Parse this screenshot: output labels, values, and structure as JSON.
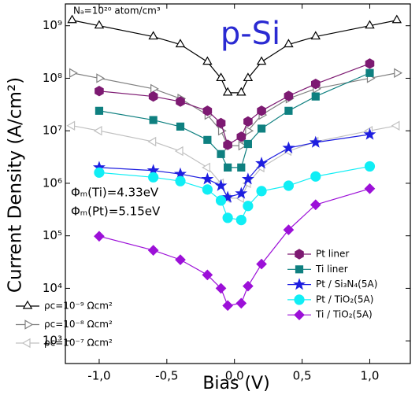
{
  "chart_data": {
    "type": "line",
    "y_scale": "log",
    "ylabel": "Current Density (A/cm²)",
    "xlabel": "Bias (V)",
    "annotations": [
      "Nₐ=10²⁰ atom/cm³",
      "p-Si",
      "Φₘ(Ti)=4.33eV",
      "Φₘ(Pt)=5.15eV"
    ],
    "xlim": [
      -1.25,
      1.3
    ],
    "ylim": [
      370,
      2600000000
    ],
    "xticks": [
      {
        "value": -1,
        "label": "-1,0"
      },
      {
        "value": -0.5,
        "label": "-0,5"
      },
      {
        "value": 0,
        "label": "0,0"
      },
      {
        "value": 0.5,
        "label": "0,5"
      },
      {
        "value": 1,
        "label": "1,0"
      }
    ],
    "yticks": [
      {
        "value": 1000,
        "label": "10³"
      },
      {
        "value": 10000,
        "label": "10⁴"
      },
      {
        "value": 100000,
        "label": "10⁵"
      },
      {
        "value": 1000000,
        "label": "10⁶"
      },
      {
        "value": 10000000,
        "label": "10⁷"
      },
      {
        "value": 100000000,
        "label": "10⁸"
      },
      {
        "value": 1000000000,
        "label": "10⁹"
      }
    ],
    "series": [
      {
        "name": "ρc=10⁻⁹ Ωcm²",
        "color": "#000000",
        "marker": "triangle-up",
        "filled": false,
        "legend": "lower left",
        "x": [
          -1.2,
          -1.0,
          -0.6,
          -0.4,
          -0.2,
          -0.1,
          -0.05,
          0.05,
          0.1,
          0.2,
          0.4,
          0.6,
          1.0,
          1.2
        ],
        "values": [
          1270000000,
          1000000000,
          620000000,
          440000000,
          205000000,
          100000000,
          53000000,
          53000000,
          100000000,
          205000000,
          440000000,
          620000000,
          1000000000,
          1270000000
        ]
      },
      {
        "name": "ρc=10⁻⁸ Ωcm²",
        "color": "#808080",
        "marker": "triangle-right",
        "filled": false,
        "legend": "lower left",
        "x": [
          -1.2,
          -1.0,
          -0.6,
          -0.4,
          -0.2,
          -0.1,
          -0.05,
          0.05,
          0.1,
          0.2,
          0.4,
          0.6,
          1.0,
          1.2
        ],
        "values": [
          126000000,
          100000000,
          63000000,
          41000000,
          20000000,
          10000000,
          5200000,
          5200000,
          10000000,
          20000000,
          41000000,
          63000000,
          100000000,
          126000000
        ]
      },
      {
        "name": "ρc=10⁻⁷ Ωcm²",
        "color": "#c0c0c0",
        "marker": "triangle-left",
        "filled": false,
        "legend": "lower left",
        "x": [
          -1.2,
          -1.0,
          -0.6,
          -0.4,
          -0.2,
          -0.1,
          -0.05,
          0.05,
          0.1,
          0.2,
          0.4,
          0.6,
          1.0,
          1.2
        ],
        "values": [
          12500000,
          10000000,
          6200000,
          4100000,
          2000000,
          1000000,
          520000,
          520000,
          1000000,
          2000000,
          4100000,
          6200000,
          10000000,
          12500000
        ]
      },
      {
        "name": "Pt liner",
        "color": "#7d1a72",
        "marker": "hexagon",
        "filled": true,
        "legend": "lower right",
        "x": [
          -1.0,
          -0.6,
          -0.4,
          -0.2,
          -0.1,
          -0.05,
          0.05,
          0.1,
          0.2,
          0.4,
          0.6,
          1.0
        ],
        "values": [
          57000000,
          45000000,
          36000000,
          24000000,
          14000000,
          5400000,
          7700000,
          15000000,
          24000000,
          46000000,
          78000000,
          190000000
        ]
      },
      {
        "name": "Ti liner",
        "color": "#0f8080",
        "marker": "square",
        "filled": true,
        "legend": "lower right",
        "x": [
          -1.0,
          -0.6,
          -0.4,
          -0.2,
          -0.1,
          -0.05,
          0.05,
          0.1,
          0.2,
          0.4,
          0.6,
          1.0
        ],
        "values": [
          24000000,
          16000000,
          12000000,
          6700000,
          3600000,
          2000000,
          2000000,
          5600000,
          11000000,
          24000000,
          45000000,
          126000000
        ]
      },
      {
        "name": "Pt / Si₃N₄(5A)",
        "color": "#1e1ee0",
        "marker": "star",
        "filled": true,
        "legend": "lower right",
        "x": [
          -1.0,
          -0.6,
          -0.4,
          -0.2,
          -0.1,
          -0.05,
          0.05,
          0.1,
          0.2,
          0.4,
          0.6,
          1.0
        ],
        "values": [
          2000000,
          1750000,
          1500000,
          1200000,
          900000,
          540000,
          640000,
          1200000,
          2400000,
          4700000,
          6000000,
          8500000
        ]
      },
      {
        "name": "Pt / TiO₂(5A)",
        "color": "#10eef5",
        "marker": "circle",
        "filled": true,
        "legend": "lower right",
        "x": [
          -1.0,
          -0.6,
          -0.4,
          -0.2,
          -0.1,
          -0.05,
          0.05,
          0.1,
          0.2,
          0.4,
          0.6,
          1.0
        ],
        "values": [
          1600000,
          1300000,
          1100000,
          760000,
          470000,
          220000,
          200000,
          370000,
          710000,
          900000,
          1350000,
          2100000
        ]
      },
      {
        "name": "Ti / TiO₂(5A)",
        "color": "#9c10d8",
        "marker": "diamond",
        "filled": true,
        "legend": "lower right",
        "x": [
          -1.0,
          -0.6,
          -0.4,
          -0.2,
          -0.1,
          -0.05,
          0.05,
          0.1,
          0.2,
          0.4,
          0.6,
          1.0
        ],
        "values": [
          98000,
          53000,
          35000,
          18000,
          10000,
          4700,
          5200,
          11000,
          29000,
          130000,
          390000,
          790000
        ]
      }
    ]
  }
}
